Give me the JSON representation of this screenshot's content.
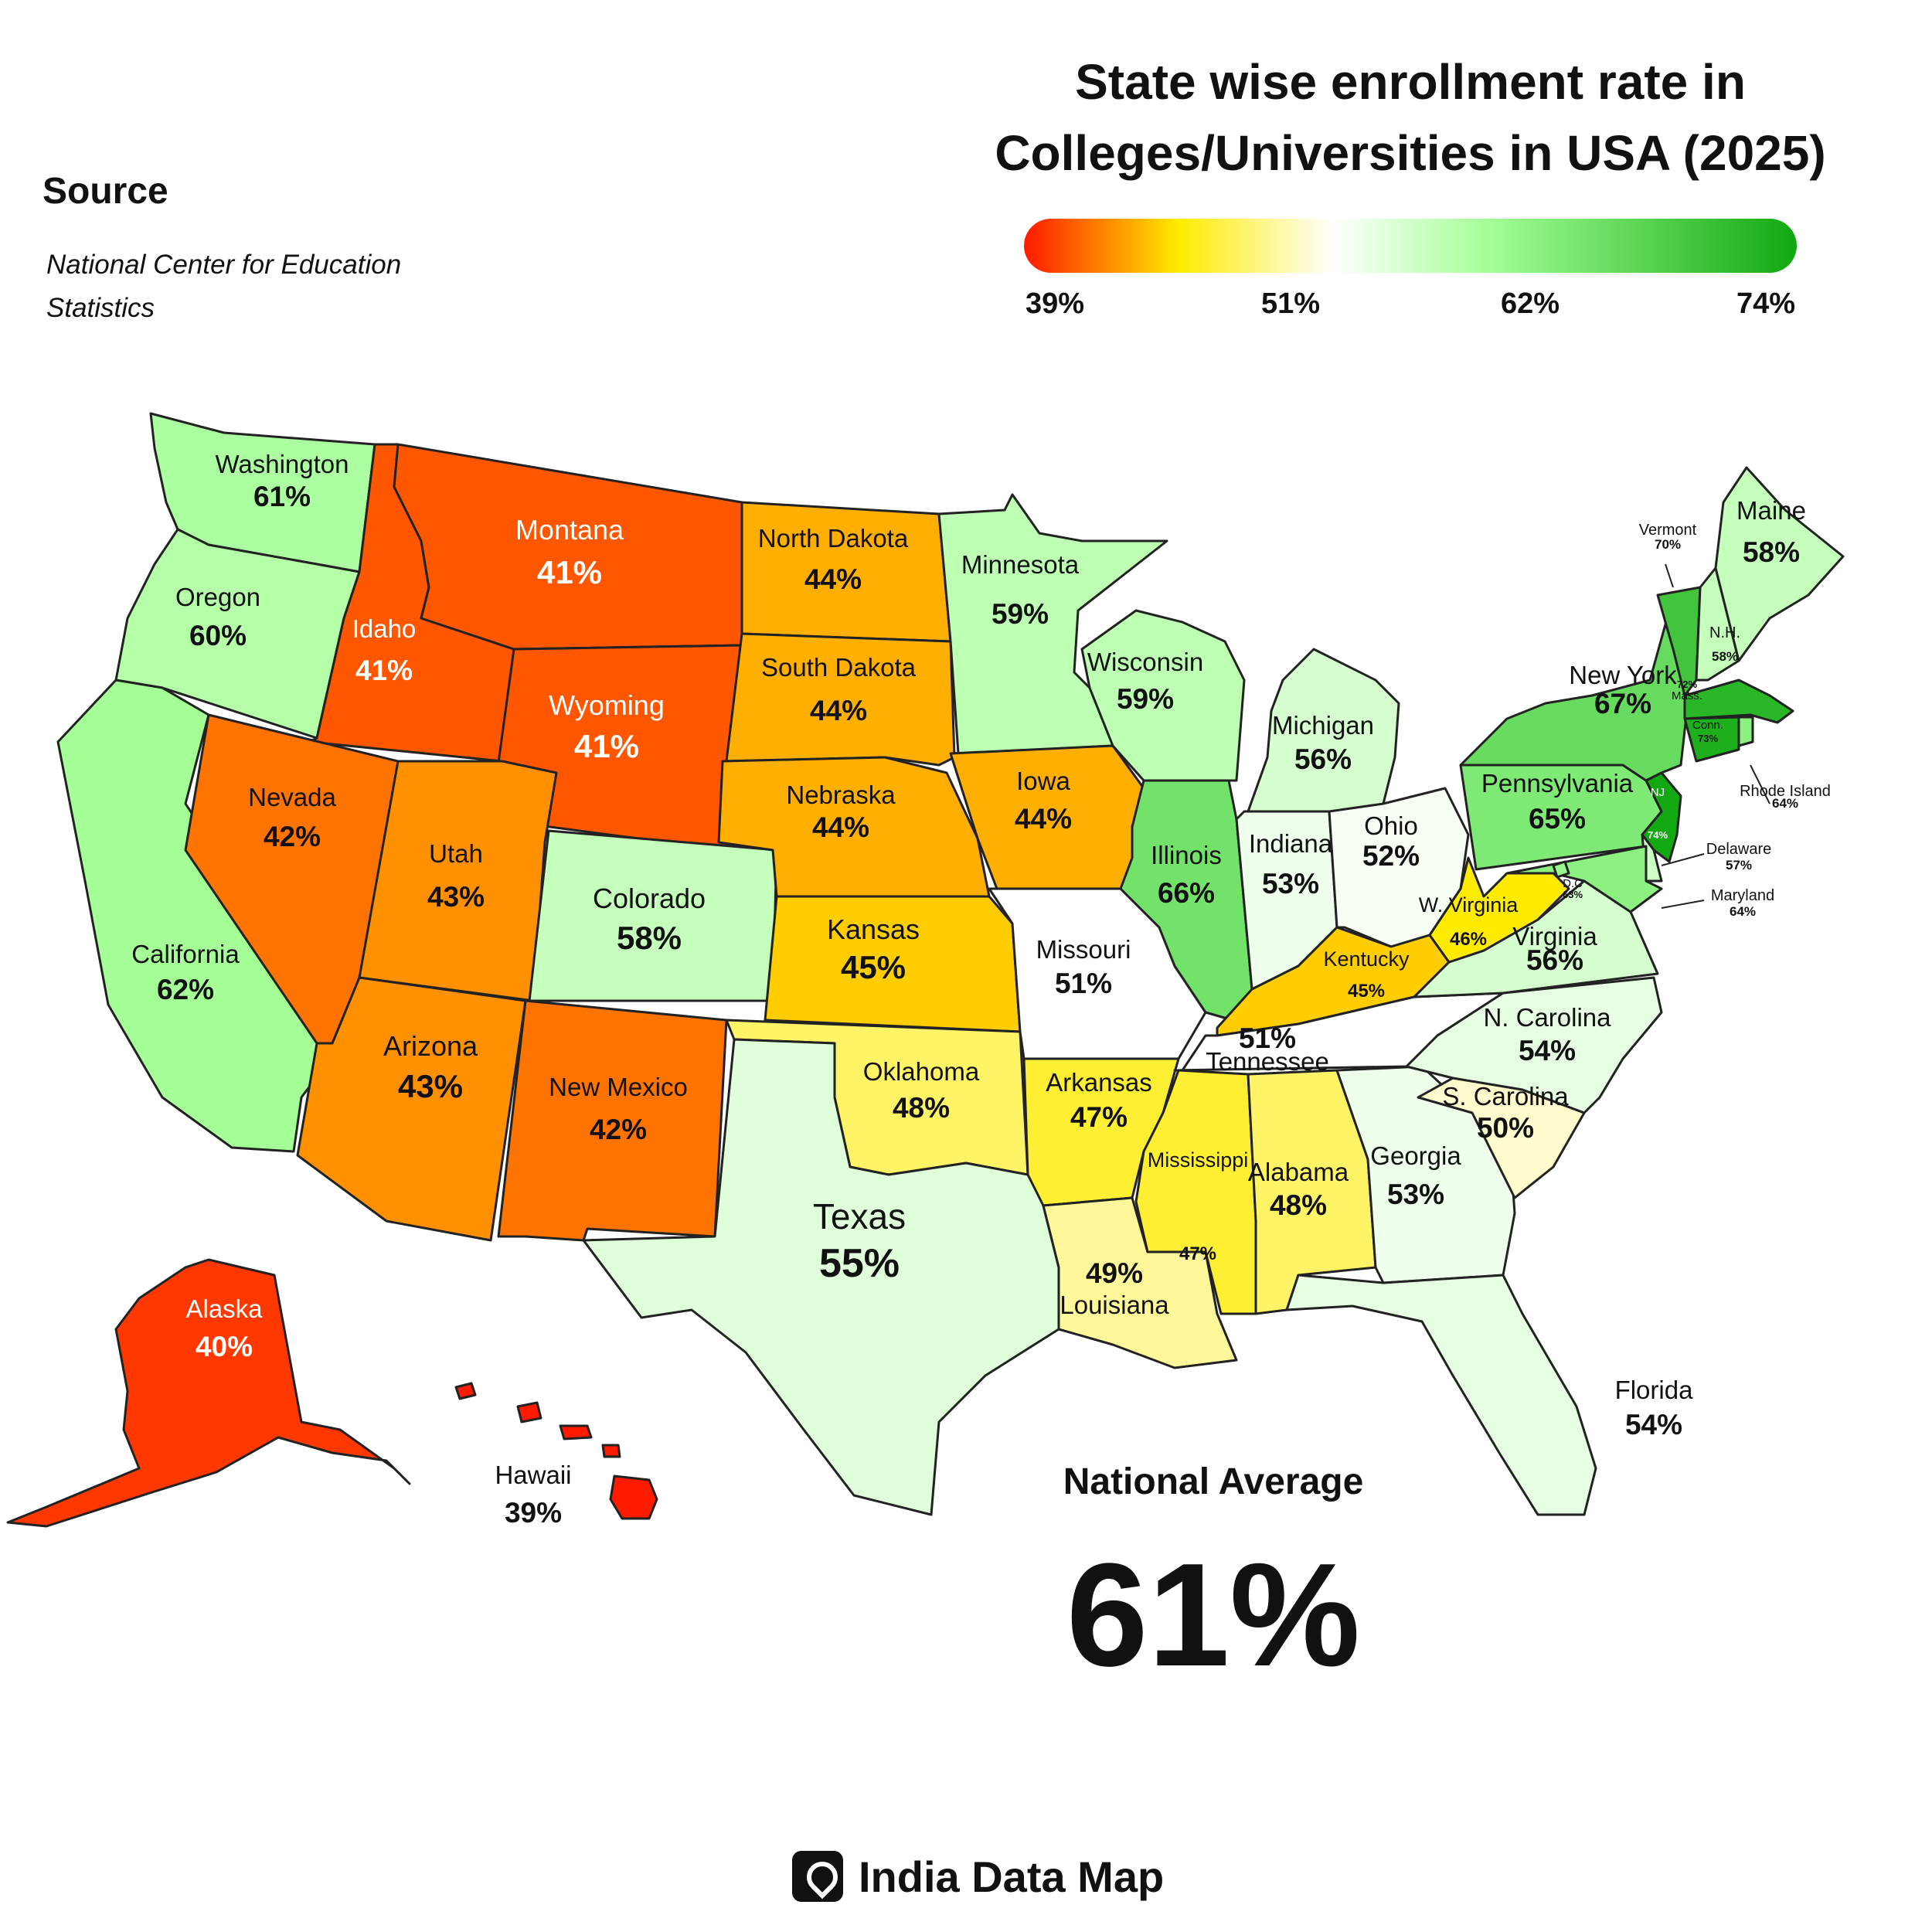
{
  "title": "State wise enrollment rate in Colleges/Universities in USA (2025)",
  "source": {
    "heading": "Source",
    "text": "National Center for Education Statistics"
  },
  "legend": {
    "ticks": [
      "39%",
      "51%",
      "62%",
      "74%"
    ],
    "colors": [
      "#ff1a00",
      "#ffeb00",
      "#ffffff",
      "#a4ff96",
      "#11a811"
    ]
  },
  "states": [
    {
      "name": "Washington",
      "value": "61%"
    },
    {
      "name": "Oregon",
      "value": "60%"
    },
    {
      "name": "California",
      "value": "62%"
    },
    {
      "name": "Idaho",
      "value": "41%"
    },
    {
      "name": "Nevada",
      "value": "42%"
    },
    {
      "name": "Montana",
      "value": "41%"
    },
    {
      "name": "Wyoming",
      "value": "41%"
    },
    {
      "name": "Utah",
      "value": "43%"
    },
    {
      "name": "Arizona",
      "value": "43%"
    },
    {
      "name": "Colorado",
      "value": "58%"
    },
    {
      "name": "New Mexico",
      "value": "42%"
    },
    {
      "name": "North Dakota",
      "value": "44%"
    },
    {
      "name": "South Dakota",
      "value": "44%"
    },
    {
      "name": "Nebraska",
      "value": "44%"
    },
    {
      "name": "Kansas",
      "value": "45%"
    },
    {
      "name": "Oklahoma",
      "value": "48%"
    },
    {
      "name": "Texas",
      "value": "55%"
    },
    {
      "name": "Minnesota",
      "value": "59%"
    },
    {
      "name": "Iowa",
      "value": "44%"
    },
    {
      "name": "Missouri",
      "value": "51%"
    },
    {
      "name": "Arkansas",
      "value": "47%"
    },
    {
      "name": "Louisiana",
      "value": "49%"
    },
    {
      "name": "Wisconsin",
      "value": "59%"
    },
    {
      "name": "Illinois",
      "value": "66%"
    },
    {
      "name": "Michigan",
      "value": "56%"
    },
    {
      "name": "Indiana",
      "value": "53%"
    },
    {
      "name": "Ohio",
      "value": "52%"
    },
    {
      "name": "Kentucky",
      "value": "45%"
    },
    {
      "name": "Tennessee",
      "value": "51%"
    },
    {
      "name": "Mississippi",
      "value": "47%"
    },
    {
      "name": "Alabama",
      "value": "48%"
    },
    {
      "name": "Georgia",
      "value": "53%"
    },
    {
      "name": "Florida",
      "value": "54%"
    },
    {
      "name": "S. Carolina",
      "value": "50%"
    },
    {
      "name": "N. Carolina",
      "value": "54%"
    },
    {
      "name": "Virginia",
      "value": "56%"
    },
    {
      "name": "W. Virginia",
      "value": "46%"
    },
    {
      "name": "Pennsylvania",
      "value": "65%"
    },
    {
      "name": "New York",
      "value": "67%"
    },
    {
      "name": "Vermont",
      "value": "70%"
    },
    {
      "name": "N.H.",
      "value": "58%"
    },
    {
      "name": "Maine",
      "value": "58%"
    },
    {
      "name": "Mass.",
      "value": "72%"
    },
    {
      "name": "Conn.",
      "value": "73%"
    },
    {
      "name": "Rhode Island",
      "value": "64%"
    },
    {
      "name": "NJ",
      "value": "74%"
    },
    {
      "name": "Delaware",
      "value": "57%"
    },
    {
      "name": "Maryland",
      "value": "64%"
    },
    {
      "name": "D.C",
      "value": "63%"
    },
    {
      "name": "Alaska",
      "value": "40%"
    },
    {
      "name": "Hawaii",
      "value": "39%"
    }
  ],
  "national_average": {
    "label": "National Average",
    "value": "61%"
  },
  "brand": {
    "name": "India Data Map",
    "icon": "location-pin-icon"
  }
}
